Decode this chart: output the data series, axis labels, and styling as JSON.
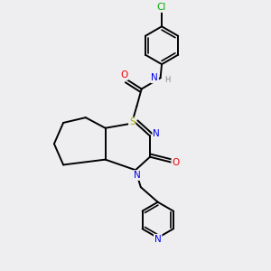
{
  "bg_color": "#eeeef0",
  "bond_color": "#000000",
  "bond_width": 1.4,
  "atom_colors": {
    "C": "#000000",
    "N": "#0000ee",
    "O": "#ee0000",
    "S": "#aaaa00",
    "Cl": "#00aa00",
    "H": "#888888"
  },
  "font_size": 7.5,
  "figsize": [
    3.0,
    3.0
  ],
  "dpi": 100
}
